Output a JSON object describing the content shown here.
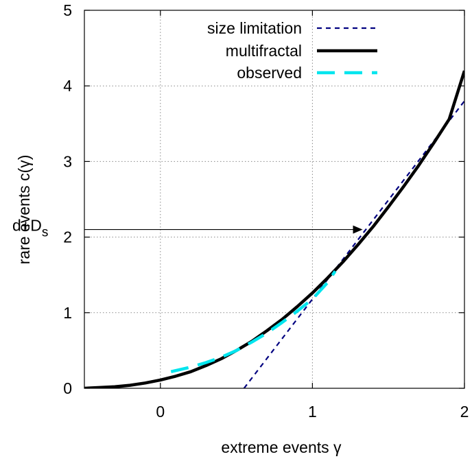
{
  "chart_data": {
    "type": "line",
    "title": "",
    "xlabel": "extreme events γ",
    "ylabel": "rare events c(γ)",
    "xlim": [
      -0.5,
      2
    ],
    "ylim": [
      0,
      5
    ],
    "x_ticks": [
      0,
      1,
      2
    ],
    "y_ticks": [
      0,
      1,
      2,
      3,
      4,
      5
    ],
    "x_tick_labels": [
      "0",
      "1",
      "2"
    ],
    "y_tick_labels": [
      "0",
      "1",
      "2",
      "3",
      "4",
      "5"
    ],
    "grid": true,
    "legend_position": "top-right",
    "series": [
      {
        "name": "size limitation",
        "style": "dashed",
        "color": "#000080",
        "x": [
          0.55,
          2.0
        ],
        "y": [
          0.0,
          3.8
        ]
      },
      {
        "name": "multifractal",
        "style": "solid",
        "color": "#000000",
        "x": [
          -0.5,
          -0.4,
          -0.3,
          -0.2,
          -0.1,
          0.0,
          0.1,
          0.2,
          0.3,
          0.4,
          0.5,
          0.6,
          0.7,
          0.8,
          0.9,
          1.0,
          1.1,
          1.2,
          1.3,
          1.4,
          1.5,
          1.6,
          1.7,
          1.8,
          1.9,
          2.0
        ],
        "y": [
          0.0,
          0.01,
          0.02,
          0.04,
          0.07,
          0.11,
          0.16,
          0.22,
          0.3,
          0.39,
          0.5,
          0.62,
          0.76,
          0.91,
          1.08,
          1.26,
          1.46,
          1.67,
          1.9,
          2.14,
          2.4,
          2.67,
          2.95,
          3.25,
          3.56,
          4.2
        ]
      },
      {
        "name": "observed",
        "style": "long-dashed",
        "color": "#00e5ee",
        "x": [
          0.07,
          0.2,
          0.3,
          0.4,
          0.5,
          0.6,
          0.7,
          0.8,
          0.9,
          1.0,
          1.1,
          1.15
        ],
        "y": [
          0.22,
          0.28,
          0.34,
          0.41,
          0.5,
          0.61,
          0.73,
          0.87,
          1.02,
          1.18,
          1.4,
          1.55
        ]
      }
    ],
    "annotations": [
      {
        "text_main": "d+D",
        "text_sub": "s",
        "y": 2.1,
        "arrow_to_x": 1.33
      }
    ]
  }
}
